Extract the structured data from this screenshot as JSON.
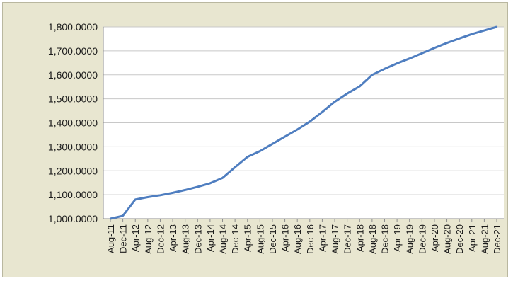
{
  "chart_data": {
    "type": "line",
    "title": "",
    "xlabel": "",
    "ylabel": "",
    "grid": true,
    "legend": "none",
    "ylim": [
      1000,
      1800
    ],
    "y_ticks": [
      "1,000.0000",
      "1,100.0000",
      "1,200.0000",
      "1,300.0000",
      "1,400.0000",
      "1,500.0000",
      "1,600.0000",
      "1,700.0000",
      "1,800.0000"
    ],
    "categories": [
      "Aug-11",
      "Dec-11",
      "Apr-12",
      "Aug-12",
      "Dec-12",
      "Apr-13",
      "Aug-13",
      "Dec-13",
      "Apr-14",
      "Aug-14",
      "Dec-14",
      "Apr-15",
      "Aug-15",
      "Dec-15",
      "Apr-16",
      "Aug-16",
      "Dec-16",
      "Apr-17",
      "Aug-17",
      "Dec-17",
      "Apr-18",
      "Aug-18",
      "Dec-18",
      "Apr-19",
      "Aug-19",
      "Dec-19",
      "Apr-20",
      "Aug-20",
      "Dec-20",
      "Apr-21",
      "Aug-21",
      "Dec-21"
    ],
    "series": [
      {
        "color": "#4f7ec0",
        "values": [
          1000,
          1012,
          1080,
          1090,
          1098,
          1108,
          1120,
          1133,
          1148,
          1170,
          1215,
          1258,
          1282,
          1312,
          1342,
          1372,
          1405,
          1445,
          1488,
          1522,
          1552,
          1600,
          1625,
          1648,
          1668,
          1690,
          1712,
          1733,
          1752,
          1770,
          1785,
          1800
        ]
      }
    ]
  }
}
